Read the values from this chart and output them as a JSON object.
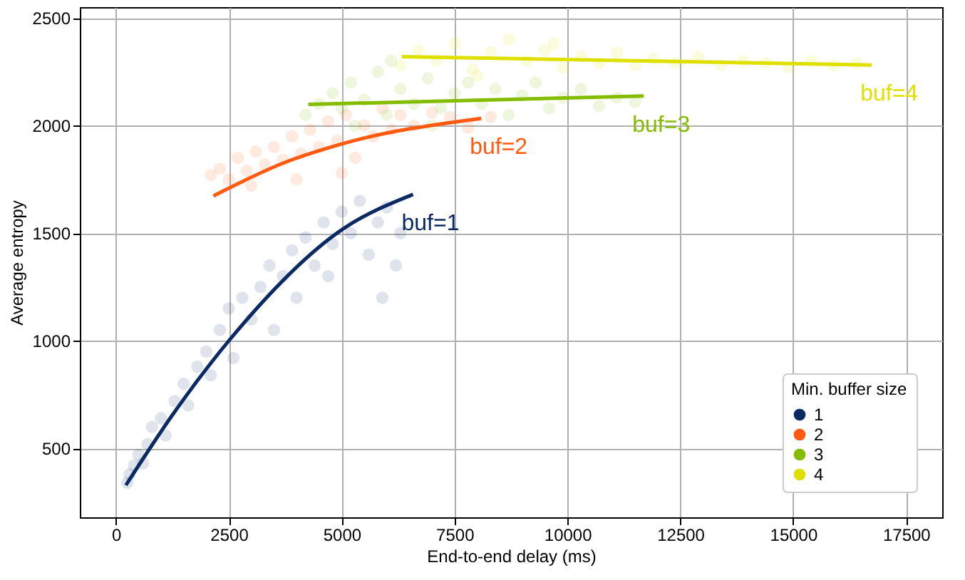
{
  "chart_data": {
    "type": "scatter",
    "xlabel": "End-to-end delay (ms)",
    "ylabel": "Average entropy",
    "legend_title": "Min. buffer size",
    "xlim": [
      -800,
      18300
    ],
    "ylim": [
      180,
      2550
    ],
    "xticks": [
      0,
      2500,
      5000,
      7500,
      10000,
      12500,
      15000,
      17500
    ],
    "yticks": [
      500,
      1000,
      1500,
      2000,
      2500
    ],
    "grid": true,
    "legend": "bottom right",
    "marker": "circle",
    "series": [
      {
        "name": "1",
        "color": "#0b2a63",
        "x": [
          250,
          300,
          400,
          500,
          600,
          700,
          800,
          1000,
          1100,
          1300,
          1500,
          1600,
          1800,
          2000,
          2100,
          2300,
          2500,
          2600,
          2800,
          3000,
          3200,
          3400,
          3500,
          3700,
          3900,
          4000,
          4200,
          4400,
          4600,
          4800,
          5000,
          5200,
          5400,
          5600,
          5800,
          6000,
          6200,
          6300,
          5900,
          4700
        ],
        "values": [
          340,
          380,
          420,
          470,
          430,
          520,
          600,
          640,
          560,
          720,
          800,
          700,
          880,
          950,
          840,
          1050,
          1150,
          920,
          1200,
          1100,
          1250,
          1350,
          1050,
          1300,
          1420,
          1200,
          1480,
          1350,
          1550,
          1450,
          1600,
          1500,
          1650,
          1400,
          1550,
          1620,
          1350,
          1500,
          1200,
          1300
        ]
      },
      {
        "name": "2",
        "color": "#ff5a0f",
        "x": [
          2100,
          2300,
          2500,
          2700,
          2900,
          3100,
          3300,
          3500,
          3700,
          3900,
          4100,
          4300,
          4500,
          4700,
          4900,
          5100,
          5300,
          5500,
          5700,
          5900,
          6100,
          6300,
          6600,
          7000,
          7400,
          7800,
          8300,
          3000,
          4000,
          5000
        ],
        "values": [
          1770,
          1800,
          1750,
          1850,
          1790,
          1880,
          1820,
          1900,
          1840,
          1950,
          1870,
          1980,
          1900,
          2020,
          1930,
          2050,
          1850,
          2000,
          1950,
          2080,
          1980,
          2050,
          2000,
          2060,
          2040,
          1990,
          2040,
          1720,
          1750,
          1780
        ]
      },
      {
        "name": "3",
        "color": "#84bd00",
        "x": [
          4200,
          4500,
          4800,
          5000,
          5200,
          5500,
          5800,
          6000,
          6300,
          6600,
          6900,
          7200,
          7500,
          7800,
          8100,
          8400,
          8700,
          9000,
          9300,
          9600,
          9900,
          10300,
          10700,
          11100,
          11500,
          5300,
          6100,
          7000
        ],
        "values": [
          2050,
          2100,
          2150,
          2080,
          2200,
          2120,
          2250,
          2050,
          2170,
          2100,
          2220,
          2080,
          2150,
          2200,
          2100,
          2170,
          2050,
          2140,
          2200,
          2080,
          2130,
          2170,
          2090,
          2130,
          2110,
          2000,
          2300,
          2000
        ]
      },
      {
        "name": "4",
        "color": "#e0e000",
        "x": [
          6300,
          6700,
          7100,
          7500,
          7900,
          8300,
          8700,
          9100,
          9500,
          9900,
          10300,
          10700,
          11100,
          11500,
          11900,
          12400,
          12900,
          13400,
          13900,
          14400,
          14900,
          15400,
          15900,
          16400,
          8000,
          9700
        ],
        "values": [
          2280,
          2350,
          2300,
          2380,
          2260,
          2340,
          2400,
          2300,
          2350,
          2270,
          2320,
          2290,
          2340,
          2280,
          2310,
          2290,
          2320,
          2280,
          2300,
          2290,
          2270,
          2300,
          2280,
          2290,
          2230,
          2380
        ]
      },
      {
        "type": "line",
        "marker": "none",
        "line_style": "solid",
        "color": "#0b2a63",
        "x": [
          220,
          1250,
          2500,
          5010,
          6580
        ],
        "values": [
          329,
          655,
          1000,
          1517,
          1680
        ]
      },
      {
        "type": "line",
        "marker": "none",
        "line_style": "solid",
        "color": "#ff5a0f",
        "x": [
          2160,
          3760,
          5010,
          8090
        ],
        "values": [
          1673,
          1830,
          1915,
          2033
        ]
      },
      {
        "type": "line",
        "marker": "none",
        "line_style": "solid",
        "color": "#84bd00",
        "x": [
          4260,
          11690
        ],
        "values": [
          2098,
          2137
        ]
      },
      {
        "type": "line",
        "marker": "none",
        "line_style": "solid",
        "color": "#e0e000",
        "x": [
          6330,
          16740
        ],
        "values": [
          2320,
          2281
        ]
      }
    ],
    "annotations": [
      "buf=1",
      "buf=2",
      "buf=3",
      "buf=4"
    ]
  }
}
